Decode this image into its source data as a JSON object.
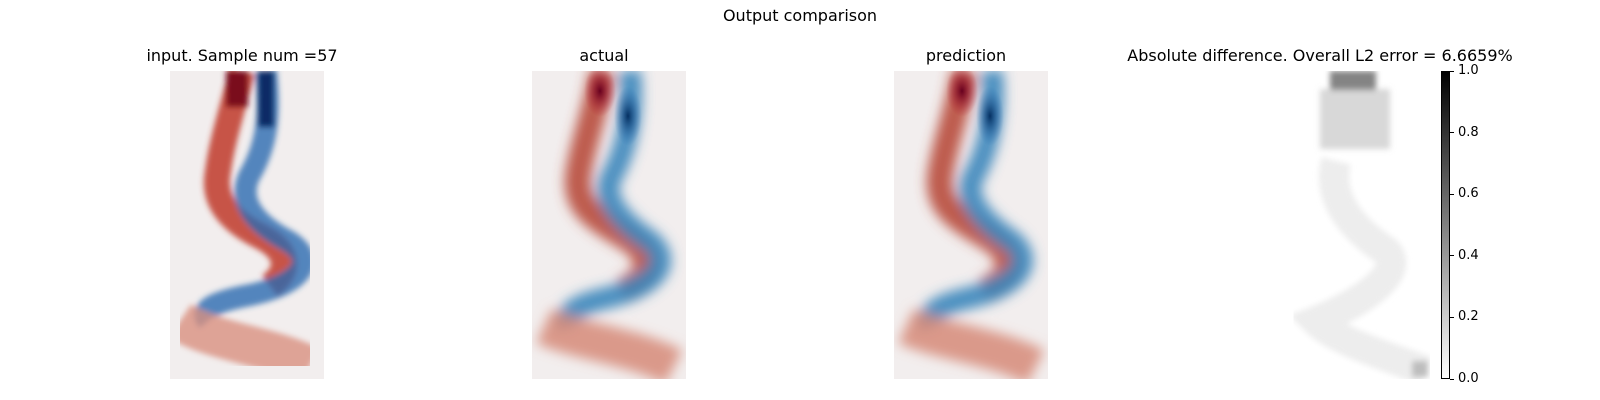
{
  "figure": {
    "title": "Output comparison"
  },
  "chart_data": [
    {
      "type": "heatmap",
      "title": "input. Sample num =57",
      "cmap": "diverging red-blue",
      "resolution": "coarse",
      "grid": false
    },
    {
      "type": "heatmap",
      "title": "actual",
      "cmap": "diverging red-blue",
      "resolution": "fine",
      "grid": false
    },
    {
      "type": "heatmap",
      "title": "prediction",
      "cmap": "diverging red-blue",
      "resolution": "fine",
      "grid": false
    },
    {
      "type": "heatmap",
      "title": "Absolute difference. Overall L2 error = 6.6659%",
      "cmap": "grayscale",
      "colorbar": {
        "range": [
          0.0,
          1.0
        ],
        "ticks": [
          "0.0",
          "0.2",
          "0.4",
          "0.6",
          "0.8",
          "1.0"
        ]
      },
      "grid": false
    }
  ],
  "colors": {
    "red_dark": "#67001f",
    "red": "#b2182b",
    "red_light": "#d6604d",
    "blue_dark": "#053061",
    "blue": "#2166ac",
    "blue_light": "#4393c3",
    "background": "#f2eeee"
  }
}
